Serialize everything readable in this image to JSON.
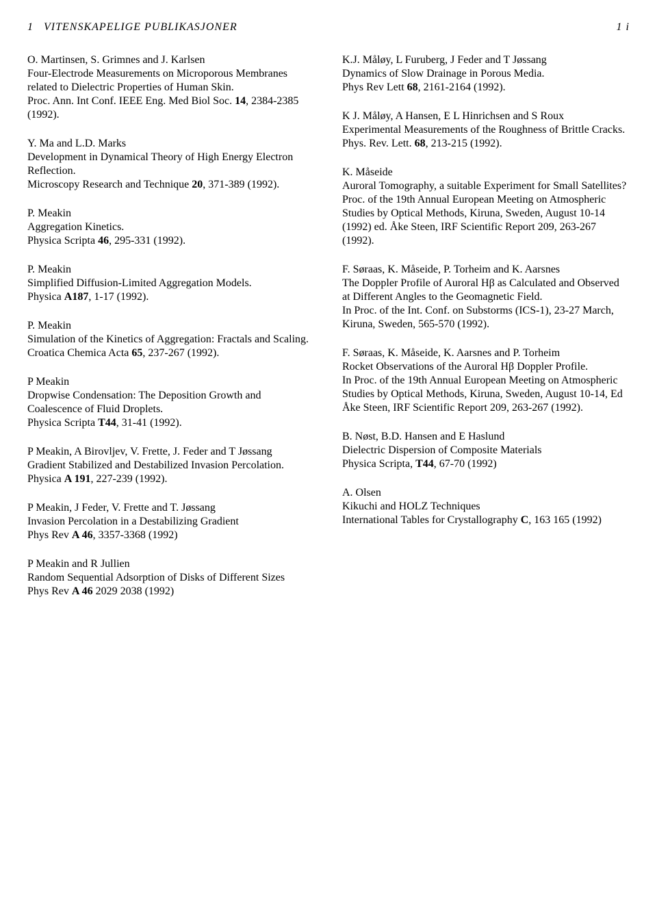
{
  "header": {
    "section_number": "1",
    "section_title": "VITENSKAPELIGE PUBLIKASJONER",
    "page_number": "1 i"
  },
  "left": [
    {
      "authors": "O. Martinsen, S. Grimnes and J. Karlsen",
      "title": "Four-Electrode Measurements on Microporous Membranes related to Dielectric Properties of Human Skin.",
      "cite_pre": "Proc. Ann. Int Conf. IEEE Eng. Med Biol Soc. ",
      "cite_bold": "14",
      "cite_post": ", 2384-2385 (1992)."
    },
    {
      "authors": "Y. Ma and L.D. Marks",
      "title": "Development in Dynamical Theory of High Energy Electron Reflection.",
      "cite_pre": "Microscopy Research and Technique ",
      "cite_bold": "20",
      "cite_post": ", 371-389 (1992)."
    },
    {
      "authors": "P. Meakin",
      "title": "Aggregation Kinetics.",
      "cite_pre": "Physica Scripta ",
      "cite_bold": "46",
      "cite_post": ", 295-331 (1992)."
    },
    {
      "authors": "P. Meakin",
      "title": "Simplified Diffusion-Limited Aggregation Models.",
      "cite_pre": "Physica ",
      "cite_bold": "A187",
      "cite_post": ", 1-17 (1992)."
    },
    {
      "authors": "P. Meakin",
      "title": "Simulation of the Kinetics of Aggregation: Fractals and Scaling.",
      "cite_pre": "Croatica Chemica Acta ",
      "cite_bold": "65",
      "cite_post": ", 237-267 (1992)."
    },
    {
      "authors": "P Meakin",
      "title": "Dropwise Condensation: The Deposition Growth and Coalescence of Fluid Droplets.",
      "cite_pre": "Physica Scripta ",
      "cite_bold": "T44",
      "cite_post": ", 31-41 (1992)."
    },
    {
      "authors": "P Meakin, A Birovljev, V. Frette, J. Feder and T Jøssang",
      "title": "Gradient Stabilized and Destabilized Invasion Percolation.",
      "cite_pre": "Physica ",
      "cite_bold": "A 191",
      "cite_post": ", 227-239 (1992)."
    },
    {
      "authors": "P Meakin, J Feder, V. Frette and T. Jøssang",
      "title": "Invasion Percolation in a Destabilizing Gradient",
      "cite_pre": "Phys Rev ",
      "cite_bold": "A 46",
      "cite_post": ", 3357-3368 (1992)"
    },
    {
      "authors": "P Meakin and R Jullien",
      "title": "Random Sequential Adsorption of Disks of Different Sizes",
      "cite_pre": "Phys Rev ",
      "cite_bold": "A 46",
      "cite_post": " 2029 2038 (1992)"
    }
  ],
  "right": [
    {
      "authors": "K.J. Måløy, L Furuberg, J Feder and T Jøssang",
      "title": "Dynamics of Slow Drainage in Porous Media.",
      "cite_pre": "Phys Rev Lett ",
      "cite_bold": "68",
      "cite_post": ", 2161-2164 (1992)."
    },
    {
      "authors": "K J. Måløy, A Hansen, E L Hinrichsen and S Roux",
      "title": "Experimental Measurements of the Roughness of Brittle Cracks.",
      "cite_pre": "Phys. Rev. Lett. ",
      "cite_bold": "68",
      "cite_post": ", 213-215 (1992)."
    },
    {
      "authors": "K. Måseide",
      "title": "Auroral Tomography, a suitable Experiment for Small Satellites?",
      "cite_pre": "Proc. of the 19th Annual European Meeting on Atmospheric Studies by Optical Methods, Kiruna, Sweden, August 10-14 (1992) ed. Åke Steen, IRF Scientific Report 209, 263-267 (1992).",
      "cite_bold": "",
      "cite_post": ""
    },
    {
      "authors": "F. Søraas, K. Måseide, P. Torheim and K. Aarsnes",
      "title": "The Doppler Profile of Auroral Hβ as Calculated and Observed at Different Angles to the Geomagnetic Field.",
      "cite_pre": "In Proc. of the Int. Conf. on Substorms (ICS-1), 23-27 March, Kiruna, Sweden, 565-570 (1992).",
      "cite_bold": "",
      "cite_post": ""
    },
    {
      "authors": "F. Søraas, K. Måseide, K. Aarsnes and P. Torheim",
      "title": "Rocket Observations of the Auroral Hβ Doppler Profile.",
      "cite_pre": "In Proc. of the 19th Annual European Meeting on Atmospheric Studies by Optical Methods, Kiruna, Sweden, August 10-14, Ed Åke Steen, IRF Scientific Report 209, 263-267 (1992).",
      "cite_bold": "",
      "cite_post": ""
    },
    {
      "authors": "B. Nøst, B.D. Hansen and E Haslund",
      "title": "Dielectric Dispersion of Composite Materials",
      "cite_pre": "Physica Scripta, ",
      "cite_bold": "T44",
      "cite_post": ", 67-70 (1992)"
    },
    {
      "authors": "A. Olsen",
      "title": "Kikuchi and HOLZ Techniques",
      "cite_pre": "International Tables for Crystallography ",
      "cite_bold": "C",
      "cite_post": ", 163 165 (1992)"
    }
  ]
}
